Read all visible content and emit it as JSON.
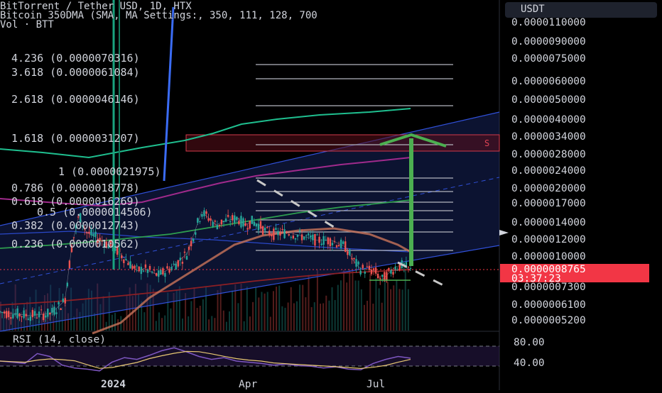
{
  "header": {
    "title": "BitTorrent / Tether USD, 1D, HTX",
    "indicator": "Bitcoin 350DMA (SMA, MA Settings:, 350, 111, 128, 700",
    "volume": "Vol · BTT"
  },
  "currency": "USDT",
  "price_axis": {
    "ticks": [
      "0.0000110000",
      "0.0000090000",
      "0.0000075000",
      "0.0000060000",
      "0.0000050000",
      "0.0000040000",
      "0.0000034000",
      "0.0000028000",
      "0.0000024000",
      "0.0000020000",
      "0.0000017000",
      "0.0000014000",
      "0.0000012000",
      "0.0000010000",
      "0.0000007300",
      "0.0000006100",
      "0.0000005200"
    ],
    "current_price": "0.0000008765",
    "countdown": "03:37:23"
  },
  "rsi": {
    "label": "RSI (14, close)",
    "ticks": [
      "80.00",
      "40.00"
    ]
  },
  "time_axis": {
    "labels": [
      "2024",
      "Apr",
      "Jul"
    ]
  },
  "fib": {
    "labels": [
      "4.236 (0.0000070316)",
      "3.618 (0.0000061084)",
      "2.618 (0.0000046146)",
      "1.618 (0.0000031207)",
      "1 (0.0000021975)",
      "0.786 (0.0000018778)",
      "0.618 (0.0000016269)",
      "0.5 (0.0000014506)",
      "0.382 (0.0000012743)",
      "0.236 (0.0000010562)"
    ]
  },
  "colors": {
    "background": "#000000",
    "candle_up": "#26a69a",
    "candle_down": "#ef5350",
    "channel": "#3050d8",
    "target_arrow": "#4caf50",
    "price_tag": "#f23645"
  },
  "chart_data": {
    "type": "line",
    "title": "BitTorrent / Tether USD, 1D, HTX",
    "y_scale": "log",
    "ylim": [
      5.2e-07,
      1.1e-05
    ],
    "x_labels": [
      "2024",
      "Apr",
      "Jul"
    ],
    "series": [
      {
        "name": "BitTorrent / Tether USD",
        "points": [
          [
            0,
            5.8e-07
          ],
          [
            4,
            5.6e-07
          ],
          [
            7,
            5.7e-07
          ],
          [
            9,
            6.5e-07
          ],
          [
            10,
            1.15e-06
          ],
          [
            11,
            1.55e-06
          ],
          [
            12,
            1.3e-06
          ],
          [
            14,
            1.2e-06
          ],
          [
            16,
            1.1e-06
          ],
          [
            18,
            9.5e-07
          ],
          [
            19,
            8.8e-07
          ],
          [
            20,
            9e-07
          ],
          [
            22,
            8.4e-07
          ],
          [
            24,
            9.2e-07
          ],
          [
            26,
            1.05e-06
          ],
          [
            27,
            1.3e-06
          ],
          [
            28,
            1.6e-06
          ],
          [
            29,
            1.5e-06
          ],
          [
            30,
            1.4e-06
          ],
          [
            31,
            1.45e-06
          ],
          [
            33,
            1.5e-06
          ],
          [
            34,
            1.4e-06
          ],
          [
            35,
            1.45e-06
          ],
          [
            36,
            1.4e-06
          ],
          [
            37,
            1.3e-06
          ],
          [
            38,
            1.28e-06
          ],
          [
            40,
            1.3e-06
          ],
          [
            42,
            1.25e-06
          ],
          [
            44,
            1.2e-06
          ],
          [
            46,
            1.2e-06
          ],
          [
            48,
            1.12e-06
          ],
          [
            49,
            9.8e-07
          ],
          [
            50,
            9e-07
          ],
          [
            51,
            8.9e-07
          ],
          [
            52,
            8.8e-07
          ],
          [
            53,
            8e-07
          ],
          [
            54,
            8.6e-07
          ],
          [
            55,
            9.2e-07
          ],
          [
            56,
            9.3e-07
          ],
          [
            57,
            8.8e-07
          ]
        ]
      },
      {
        "name": "Bitcoin 350DMA",
        "points": [
          [
            0,
            3.2e-06
          ],
          [
            4,
            3e-06
          ],
          [
            8,
            3.1e-06
          ],
          [
            12,
            3.4e-06
          ],
          [
            16,
            3.8e-06
          ],
          [
            20,
            4.1e-06
          ],
          [
            24,
            4.3e-06
          ],
          [
            28,
            4.4e-06
          ],
          [
            32,
            4.5e-06
          ],
          [
            36,
            4.6e-06
          ],
          [
            40,
            4.7e-06
          ],
          [
            44,
            4.8e-06
          ],
          [
            48,
            4.9e-06
          ],
          [
            52,
            5e-06
          ],
          [
            56,
            5.1e-06
          ]
        ]
      }
    ],
    "rsi": [
      52,
      50,
      48,
      65,
      60,
      45,
      40,
      38,
      35,
      50,
      58,
      55,
      62,
      70,
      75,
      68,
      60,
      55,
      58,
      52,
      50,
      48,
      45,
      47,
      44,
      43,
      40,
      42,
      38,
      37,
      48,
      55,
      60,
      57
    ]
  }
}
